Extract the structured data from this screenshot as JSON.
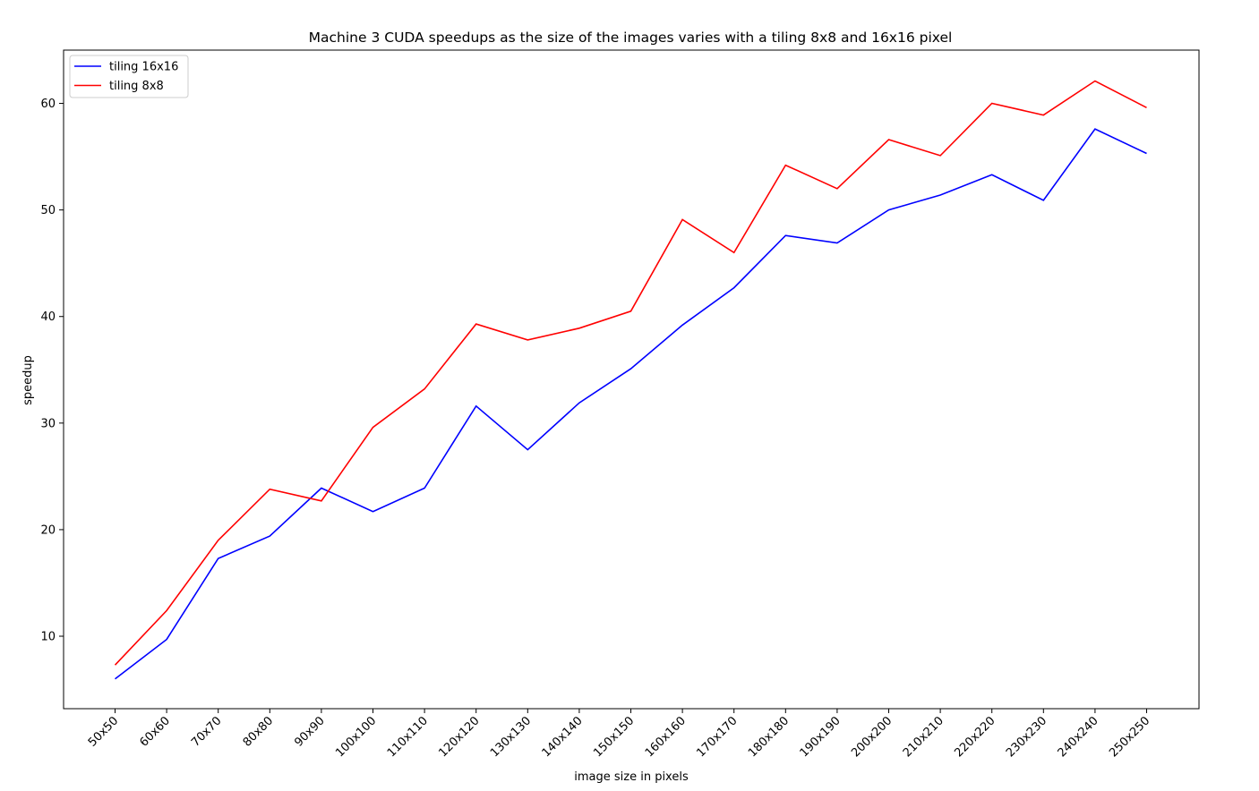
{
  "chart_data": {
    "type": "line",
    "title": "Machine 3 CUDA speedups as the size of the images varies with a tiling 8x8 and 16x16 pixel",
    "xlabel": "image size in pixels",
    "ylabel": "speedup",
    "categories": [
      "50x50",
      "60x60",
      "70x70",
      "80x80",
      "90x90",
      "100x100",
      "110x110",
      "120x120",
      "130x130",
      "140x140",
      "150x150",
      "160x160",
      "170x170",
      "180x180",
      "190x190",
      "200x200",
      "210x210",
      "220x220",
      "230x230",
      "240x240",
      "250x250"
    ],
    "ylim": [
      3.2,
      65
    ],
    "yticks": [
      10,
      20,
      30,
      40,
      50,
      60
    ],
    "grid": false,
    "legend_position": "top-left",
    "series": [
      {
        "name": "tiling 16x16",
        "color": "#0000ff",
        "values": [
          6.0,
          9.7,
          17.3,
          19.4,
          23.9,
          21.7,
          23.9,
          31.6,
          27.5,
          31.9,
          35.1,
          39.2,
          42.7,
          47.6,
          46.9,
          50.0,
          51.4,
          53.3,
          50.9,
          57.6,
          55.3
        ]
      },
      {
        "name": "tiling 8x8",
        "color": "#ff0000",
        "values": [
          7.3,
          12.4,
          19.0,
          23.8,
          22.7,
          29.6,
          33.2,
          39.3,
          37.8,
          38.9,
          40.5,
          49.1,
          46.0,
          54.2,
          52.0,
          56.6,
          55.1,
          60.0,
          58.9,
          62.1,
          59.6
        ]
      }
    ]
  }
}
